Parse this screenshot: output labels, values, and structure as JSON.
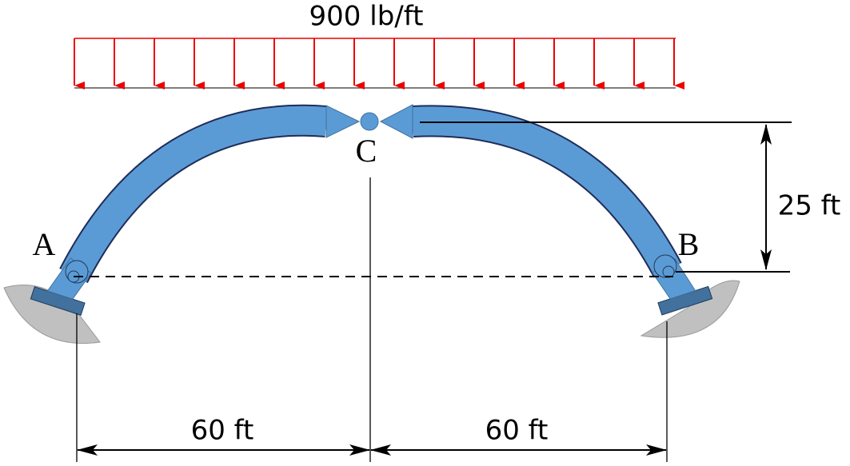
{
  "load": {
    "label": "900 lb/ft"
  },
  "points": {
    "A": "A",
    "B": "B",
    "C": "C"
  },
  "dimensions": {
    "rise": "25 ft",
    "left_span": "60 ft",
    "right_span": "60 ft"
  }
}
